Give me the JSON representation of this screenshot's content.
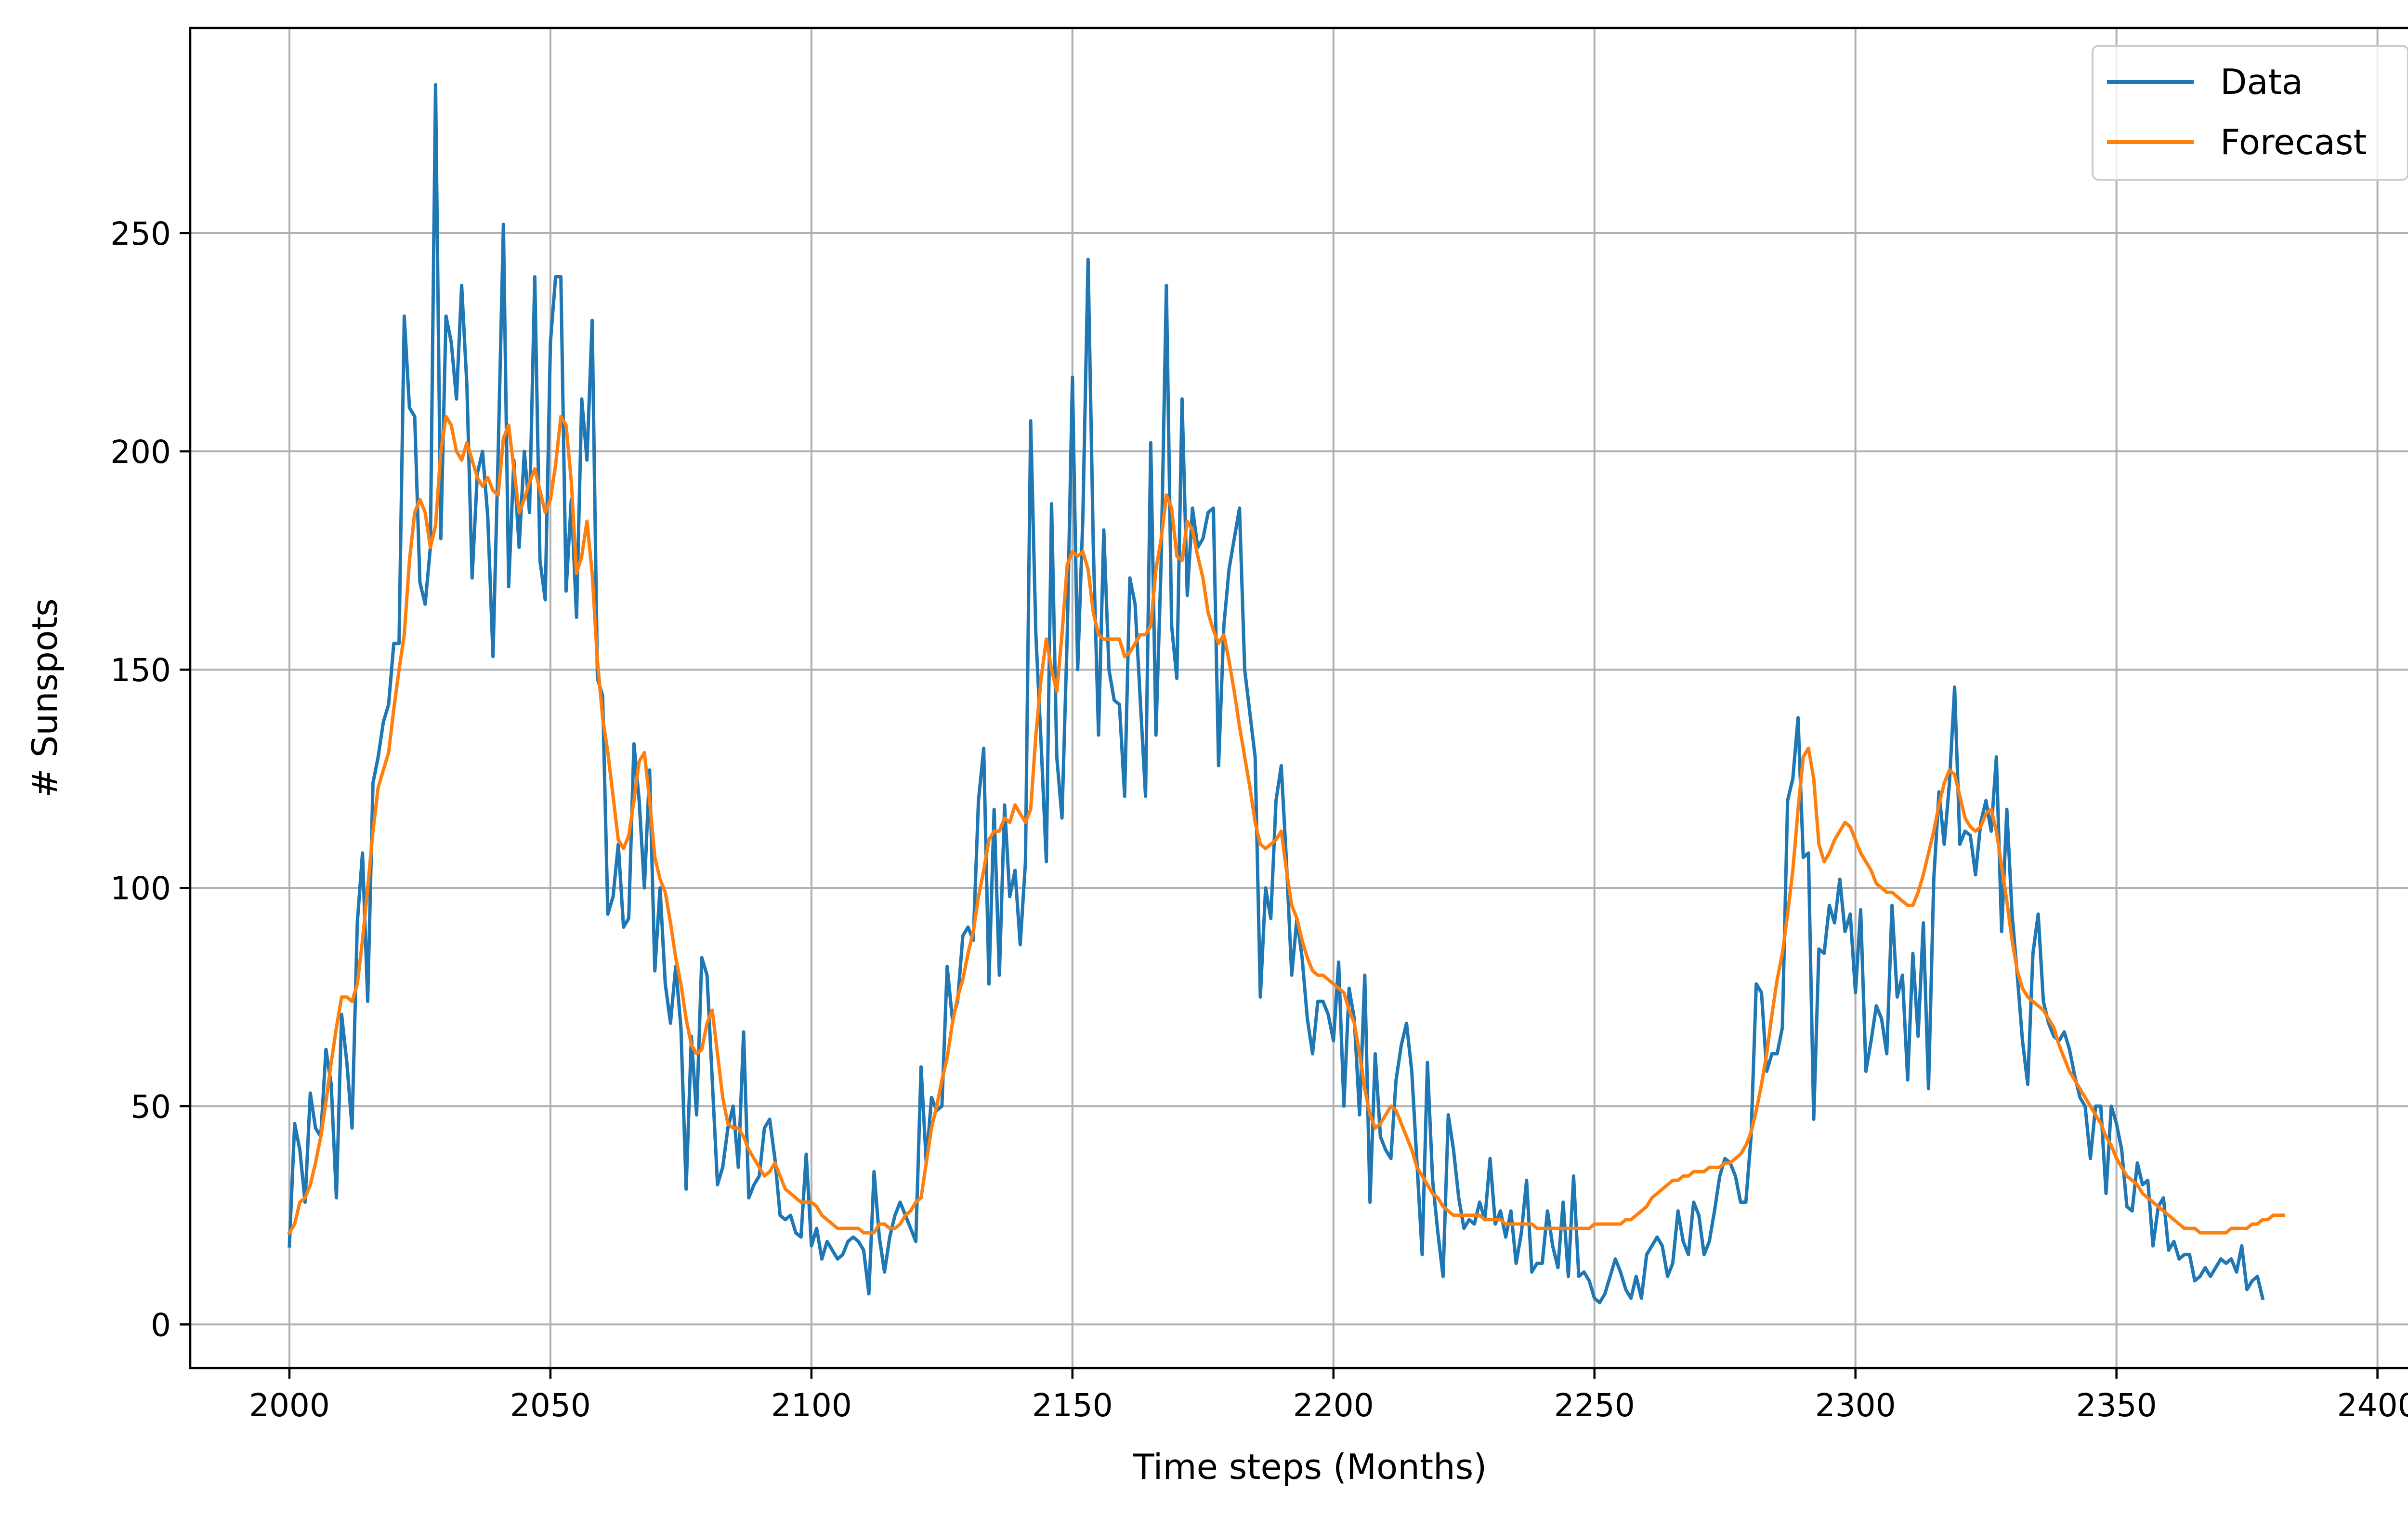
{
  "chart_data": {
    "type": "line",
    "title": "",
    "xlabel": "Time steps (Months)",
    "ylabel": "# Sunspots",
    "xlim": [
      1981,
      2410
    ],
    "ylim": [
      -10,
      297
    ],
    "grid": true,
    "legend_position": "top-right",
    "xticks": [
      2000,
      2050,
      2100,
      2150,
      2200,
      2250,
      2300,
      2350,
      2400
    ],
    "yticks": [
      0,
      50,
      100,
      150,
      200,
      250
    ],
    "colors": {
      "data": "#1f77b4",
      "forecast": "#ff7f0e"
    },
    "x_start": 2000,
    "series": [
      {
        "name": "Data",
        "color": "#1f77b4",
        "values": [
          18,
          46,
          40,
          28,
          53,
          45,
          43,
          63,
          55,
          29,
          71,
          60,
          45,
          92,
          108,
          74,
          124,
          130,
          138,
          142,
          156,
          156,
          231,
          210,
          208,
          170,
          165,
          178,
          284,
          180,
          231,
          225,
          212,
          238,
          215,
          171,
          195,
          200,
          185,
          153,
          200,
          252,
          169,
          198,
          178,
          200,
          186,
          240,
          175,
          166,
          225,
          240,
          240,
          168,
          189,
          162,
          212,
          198,
          230,
          148,
          144,
          94,
          98,
          110,
          91,
          93,
          133,
          120,
          100,
          127,
          81,
          100,
          78,
          69,
          82,
          68,
          31,
          66,
          48,
          84,
          80,
          56,
          32,
          36,
          45,
          50,
          36,
          67,
          29,
          32,
          34,
          45,
          47,
          38,
          25,
          24,
          25,
          21,
          20,
          39,
          18,
          22,
          15,
          19,
          17,
          15,
          16,
          19,
          20,
          19,
          17,
          7,
          35,
          20,
          12,
          20,
          25,
          28,
          25,
          22,
          19,
          59,
          37,
          52,
          49,
          50,
          82,
          70,
          74,
          89,
          91,
          88,
          120,
          132,
          78,
          118,
          80,
          119,
          98,
          104,
          87,
          106,
          207,
          158,
          133,
          106,
          188,
          130,
          116,
          158,
          217,
          150,
          185,
          244,
          178,
          135,
          182,
          150,
          143,
          142,
          121,
          171,
          165,
          143,
          121,
          202,
          135,
          175,
          238,
          160,
          148,
          212,
          167,
          187,
          178,
          180,
          186,
          187,
          128,
          160,
          173,
          180,
          187,
          150,
          140,
          130,
          75,
          100,
          93,
          120,
          128,
          106,
          80,
          93,
          84,
          70,
          62,
          74,
          74,
          71,
          65,
          83,
          50,
          77,
          70,
          48,
          80,
          28,
          62,
          43,
          40,
          38,
          56,
          64,
          69,
          58,
          37,
          16,
          60,
          33,
          21,
          11,
          48,
          40,
          29,
          22,
          24,
          23,
          28,
          24,
          38,
          23,
          26,
          20,
          26,
          14,
          21,
          33,
          12,
          14,
          14,
          26,
          18,
          13,
          28,
          11,
          34,
          11,
          12,
          10,
          6,
          5,
          7,
          11,
          15,
          12,
          8,
          6,
          11,
          6,
          16,
          18,
          20,
          18,
          11,
          14,
          26,
          19,
          16,
          28,
          25,
          16,
          19,
          26,
          34,
          38,
          37,
          34,
          28,
          28,
          43,
          78,
          76,
          58,
          62,
          62,
          68,
          120,
          125,
          139,
          107,
          108,
          47,
          86,
          85,
          96,
          92,
          102,
          90,
          94,
          76,
          95,
          58,
          65,
          73,
          70,
          62,
          96,
          75,
          80,
          56,
          85,
          66,
          92,
          54,
          102,
          122,
          110,
          124,
          146,
          110,
          113,
          112,
          103,
          115,
          120,
          113,
          130,
          90,
          118,
          94,
          80,
          65,
          55,
          85,
          94,
          74,
          69,
          66,
          65,
          67,
          63,
          57,
          52,
          50,
          38,
          50,
          50,
          30,
          50,
          46,
          40,
          27,
          26,
          37,
          32,
          33,
          18,
          27,
          29,
          17,
          19,
          15,
          16,
          16,
          10,
          11,
          13,
          11,
          13,
          15,
          14,
          15,
          12,
          18,
          8,
          10,
          11,
          6
        ]
      },
      {
        "name": "Forecast",
        "color": "#ff7f0e",
        "values": [
          21,
          23,
          28,
          29,
          32,
          37,
          43,
          51,
          60,
          68,
          75,
          75,
          74,
          78,
          88,
          100,
          113,
          123,
          127,
          131,
          141,
          150,
          158,
          175,
          186,
          189,
          186,
          178,
          183,
          200,
          208,
          206,
          200,
          198,
          202,
          198,
          194,
          192,
          194,
          191,
          190,
          203,
          206,
          196,
          186,
          189,
          193,
          196,
          191,
          186,
          189,
          197,
          208,
          206,
          193,
          172,
          176,
          184,
          172,
          152,
          139,
          131,
          121,
          111,
          109,
          112,
          120,
          129,
          131,
          120,
          107,
          102,
          99,
          92,
          84,
          78,
          70,
          64,
          62,
          63,
          69,
          72,
          62,
          52,
          46,
          45,
          45,
          43,
          40,
          38,
          36,
          34,
          35,
          37,
          34,
          31,
          30,
          29,
          28,
          28,
          28,
          27,
          25,
          24,
          23,
          22,
          22,
          22,
          22,
          22,
          21,
          21,
          21,
          23,
          23,
          22,
          22,
          23,
          25,
          26,
          28,
          29,
          37,
          45,
          50,
          56,
          61,
          69,
          75,
          79,
          85,
          90,
          98,
          104,
          111,
          113,
          113,
          116,
          115,
          119,
          117,
          115,
          118,
          135,
          148,
          157,
          150,
          145,
          158,
          174,
          177,
          176,
          177,
          173,
          163,
          158,
          157,
          157,
          157,
          157,
          153,
          154,
          156,
          158,
          158,
          160,
          173,
          180,
          190,
          187,
          176,
          175,
          184,
          182,
          176,
          171,
          163,
          159,
          156,
          158,
          152,
          145,
          137,
          130,
          123,
          115,
          110,
          109,
          110,
          111,
          113,
          104,
          96,
          93,
          88,
          84,
          81,
          80,
          80,
          79,
          78,
          77,
          76,
          72,
          69,
          62,
          54,
          48,
          45,
          46,
          48,
          50,
          49,
          46,
          43,
          40,
          36,
          34,
          32,
          30,
          29,
          27,
          26,
          25,
          25,
          25,
          25,
          25,
          25,
          24,
          24,
          24,
          24,
          23,
          23,
          23,
          23,
          23,
          23,
          22,
          22,
          22,
          22,
          22,
          22,
          22,
          22,
          22,
          22,
          22,
          23,
          23,
          23,
          23,
          23,
          23,
          24,
          24,
          25,
          26,
          27,
          29,
          30,
          31,
          32,
          33,
          33,
          34,
          34,
          35,
          35,
          35,
          36,
          36,
          36,
          37,
          37,
          38,
          39,
          41,
          44,
          49,
          55,
          62,
          71,
          79,
          85,
          94,
          104,
          118,
          130,
          132,
          125,
          110,
          106,
          108,
          111,
          113,
          115,
          114,
          111,
          108,
          106,
          104,
          101,
          100,
          99,
          99,
          98,
          97,
          96,
          96,
          99,
          103,
          108,
          113,
          119,
          124,
          127,
          126,
          121,
          116,
          114,
          113,
          114,
          117,
          118,
          113,
          105,
          97,
          88,
          81,
          77,
          75,
          74,
          73,
          72,
          70,
          68,
          64,
          61,
          58,
          56,
          54,
          52,
          50,
          48,
          46,
          43,
          41,
          38,
          36,
          34,
          33,
          32,
          30,
          29,
          28,
          27,
          26,
          25,
          24,
          23,
          22,
          22,
          22,
          21,
          21,
          21,
          21,
          21,
          21,
          22,
          22,
          22,
          22,
          23,
          23,
          24,
          24,
          25,
          25,
          25
        ]
      }
    ]
  }
}
